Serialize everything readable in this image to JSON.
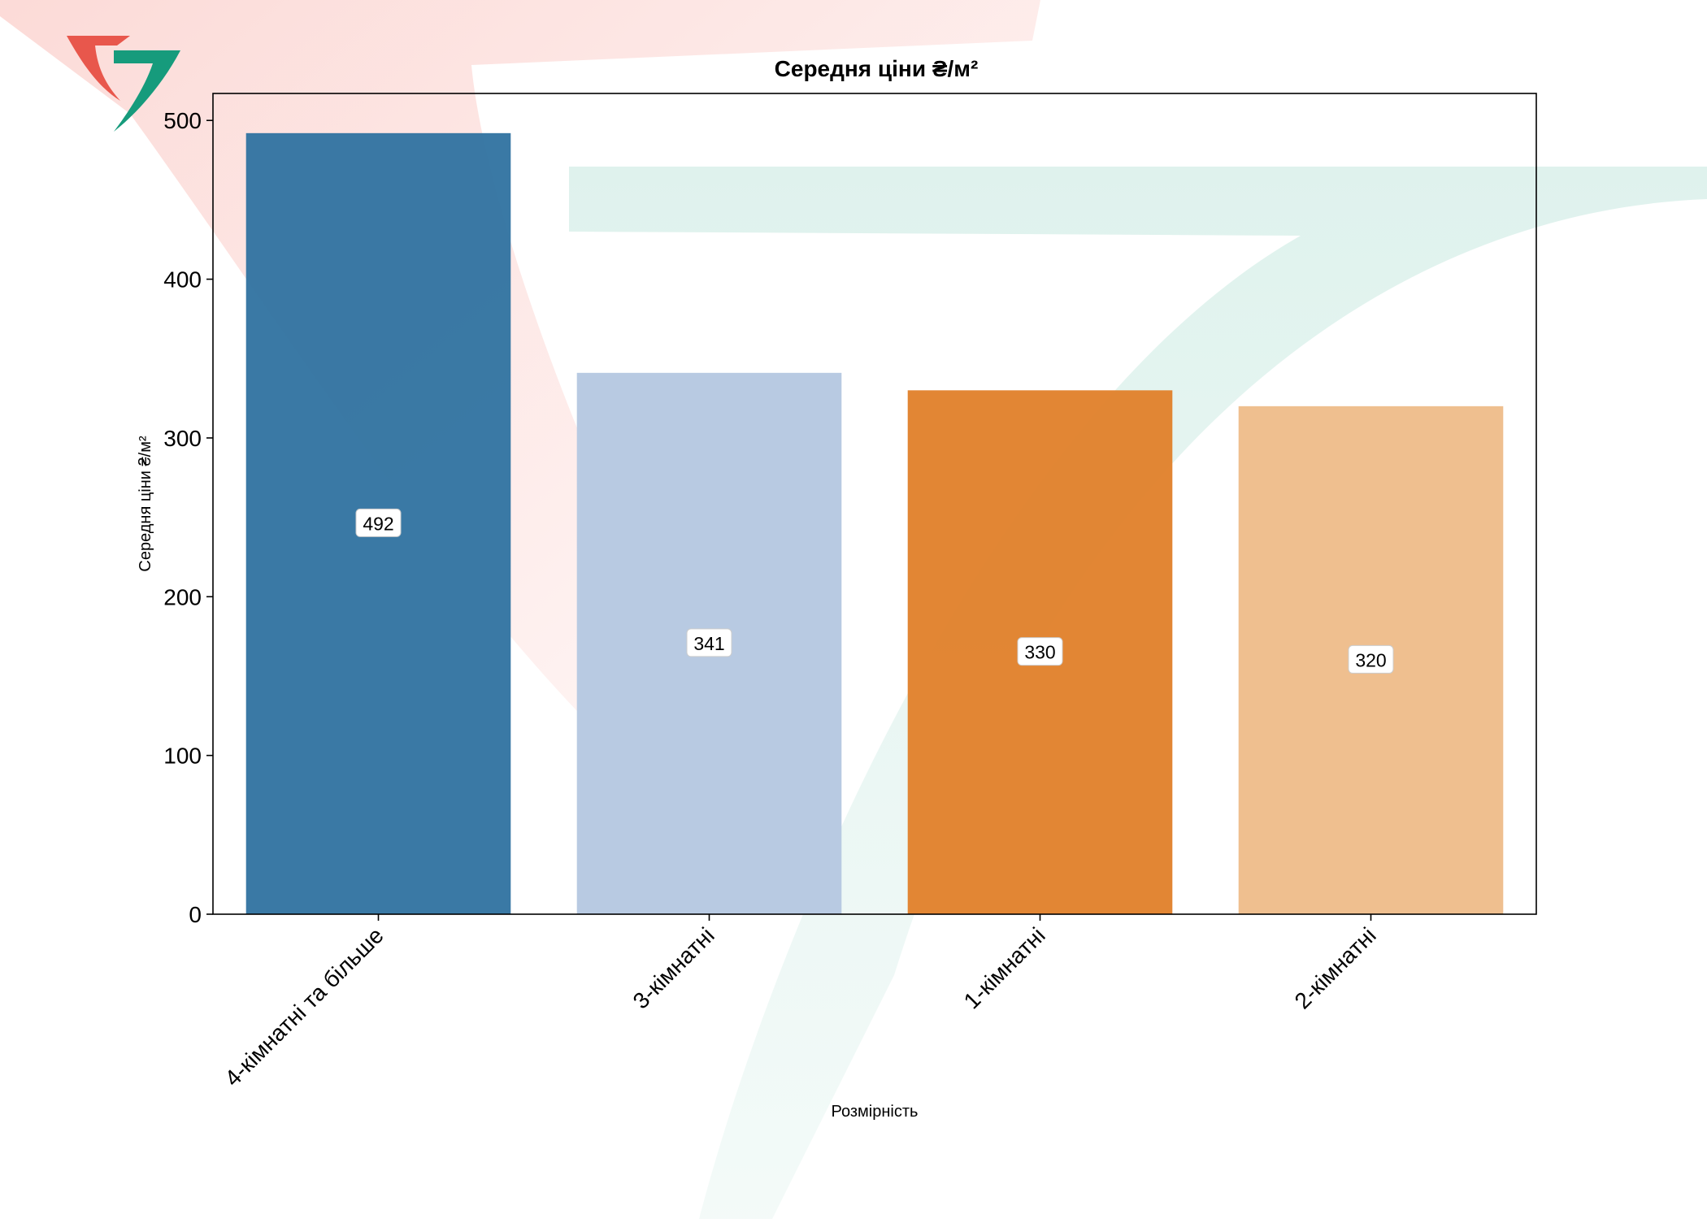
{
  "chart_data": {
    "type": "bar",
    "title": "Середня ціни ₴/м²",
    "xlabel": "Розмірність",
    "ylabel": "Середня ціни ₴/м²",
    "categories": [
      "4-кімнатні та більше",
      "3-кімнатні",
      "1-кімнатні",
      "2-кімнатні"
    ],
    "values": [
      492,
      341,
      330,
      320
    ],
    "value_labels": [
      "492",
      "341",
      "330",
      "320"
    ],
    "colors": [
      "#3274a1",
      "#b5c8e1",
      "#e1812c",
      "#eebc8a"
    ],
    "ylim": [
      0,
      517
    ],
    "yticks": [
      0,
      100,
      200,
      300,
      400,
      500
    ],
    "ytick_labels": [
      "0",
      "100",
      "200",
      "300",
      "400",
      "500"
    ],
    "grid": false,
    "legend": "none"
  },
  "logo": {
    "colors": [
      "#e8574c",
      "#169b7c"
    ]
  }
}
